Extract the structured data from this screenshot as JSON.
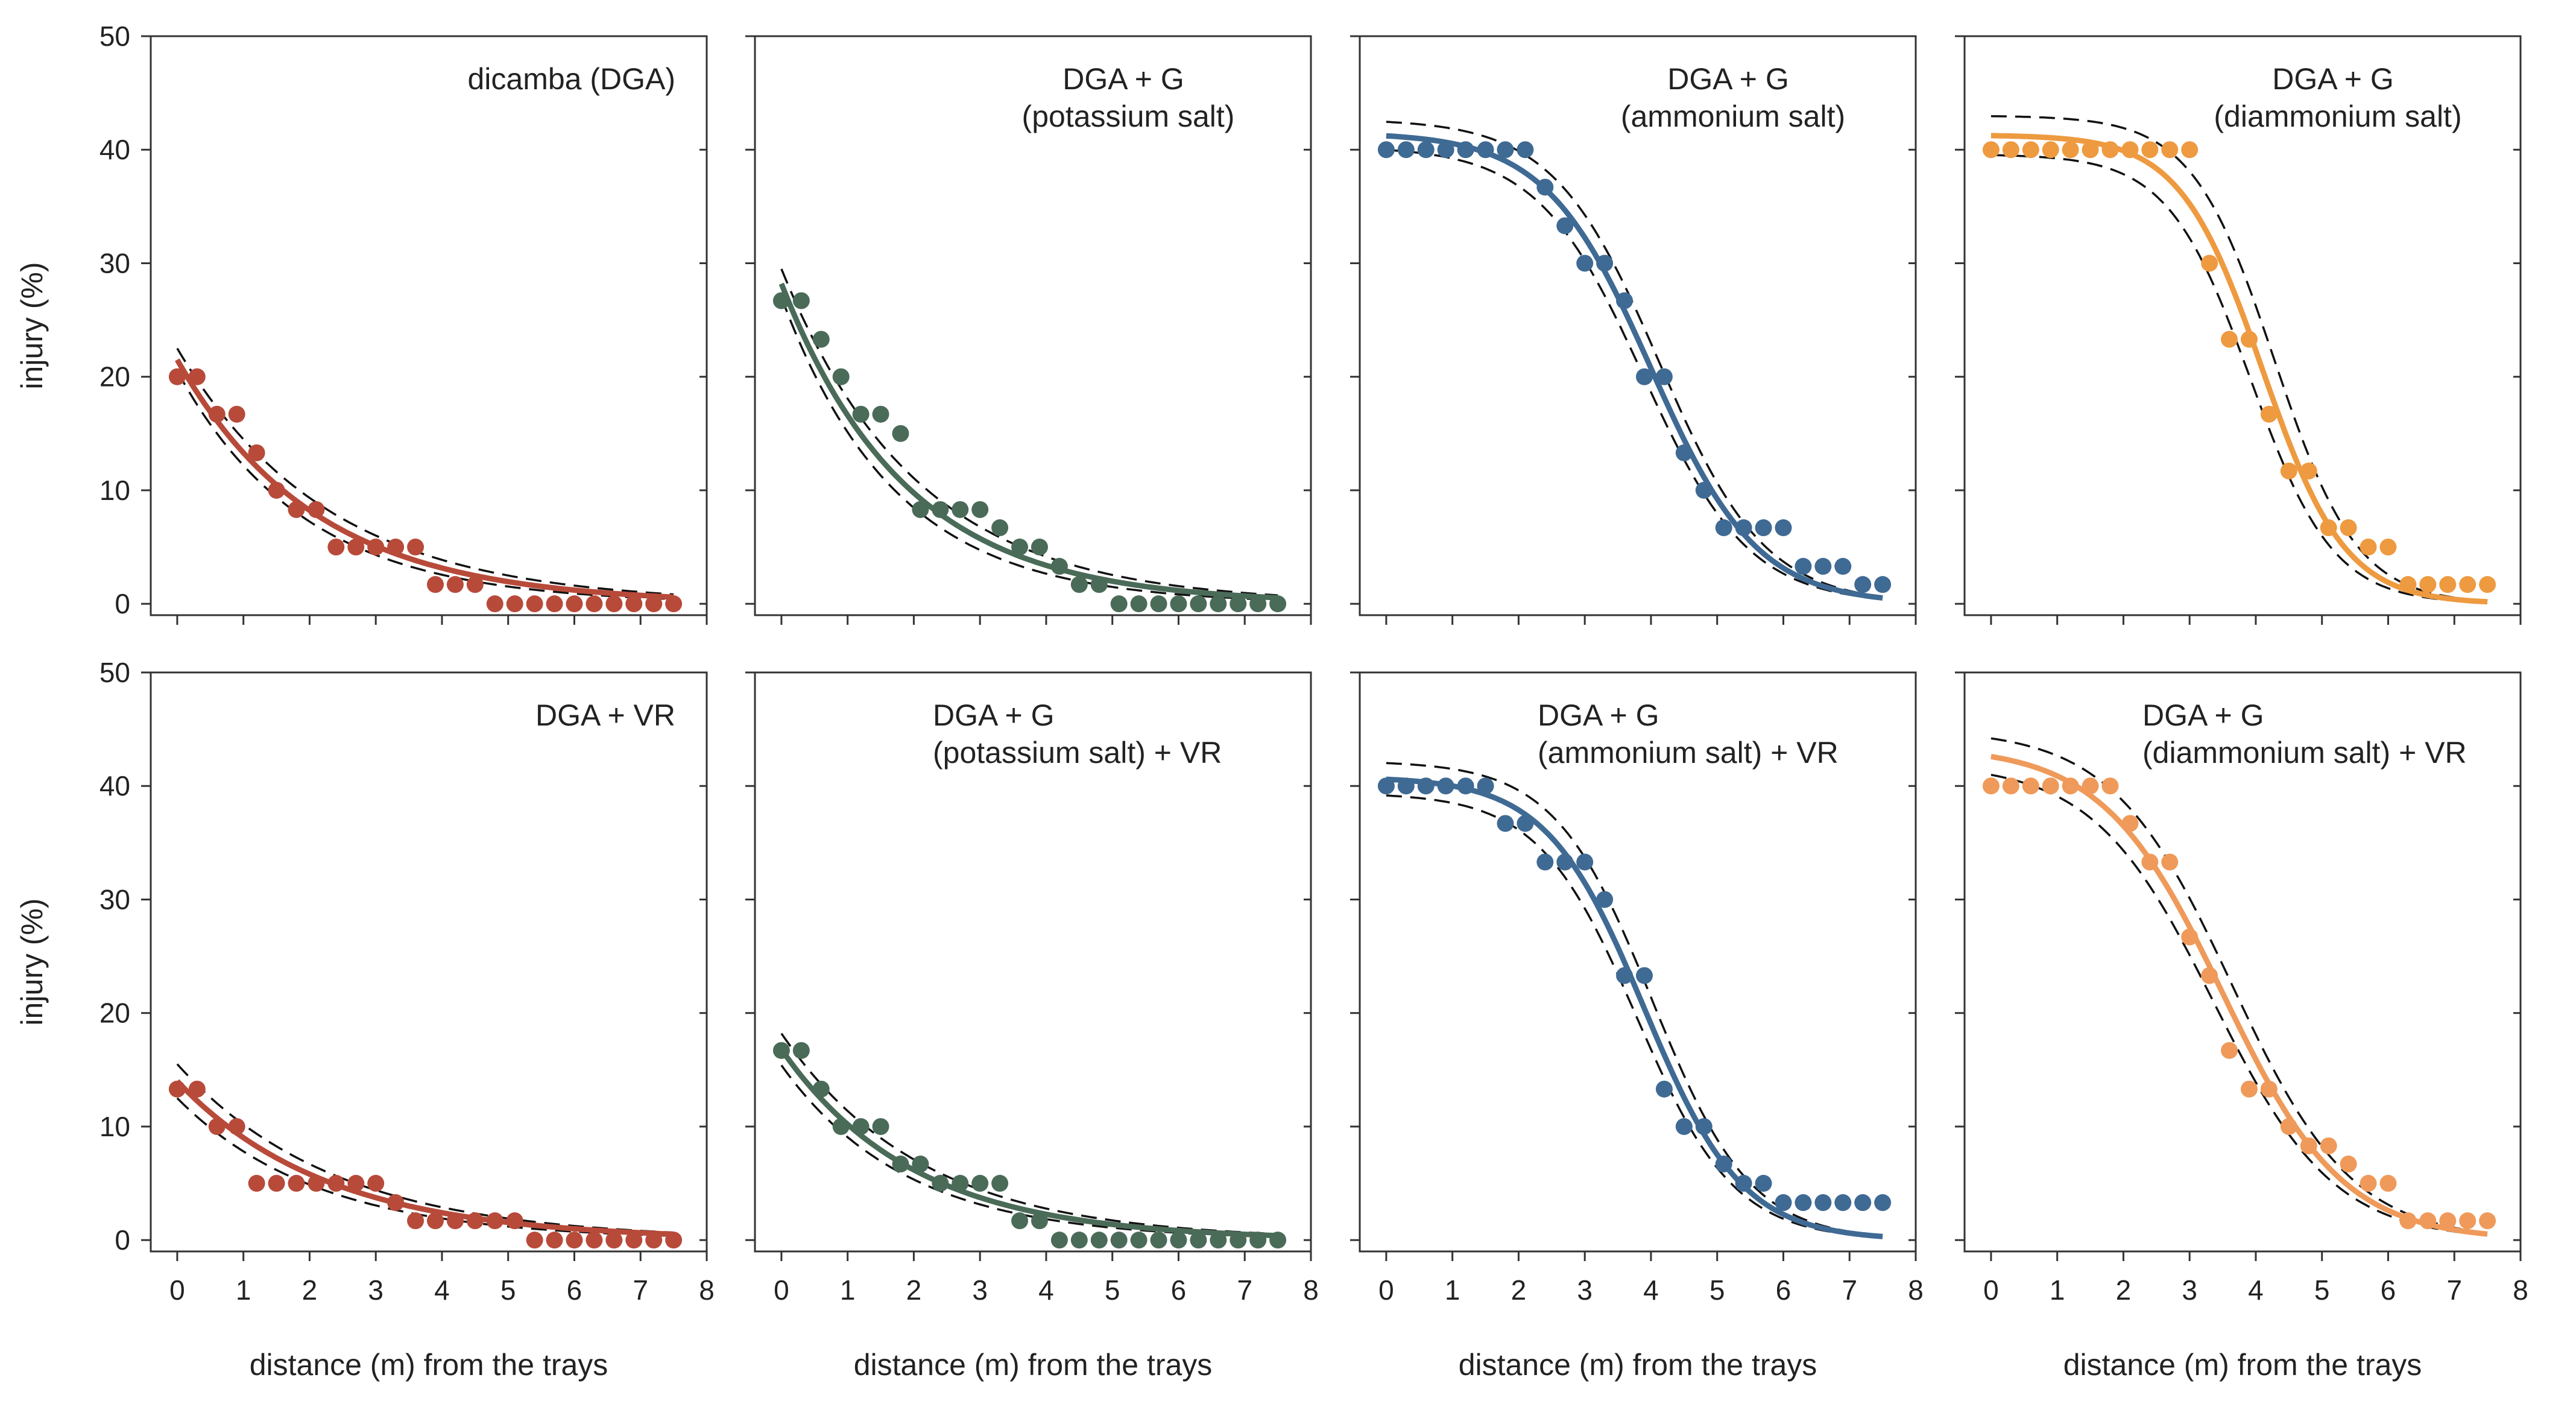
{
  "figure": {
    "xlabel": "distance (m) from the trays",
    "ylabel": "injury (%)",
    "colors": {
      "red": "#b84a3a",
      "green": "#4a6b58",
      "blue": "#3f6a94",
      "orange": "#ee9a40",
      "orange_light": "#ef9a5a",
      "ci_line": "#111111",
      "axis": "#333333"
    }
  },
  "chart_data": [
    {
      "type": "scatter",
      "title": [
        "dicamba (DGA)"
      ],
      "title_align": "right",
      "color": "red",
      "xlabel": "distance (m) from the trays",
      "ylabel": "injury (%)",
      "xlim": [
        -0.4,
        8
      ],
      "ylim": [
        -1,
        50
      ],
      "xticks": [
        "0",
        "1",
        "2",
        "3",
        "4",
        "5",
        "6",
        "7",
        "8"
      ],
      "yticks": [
        "0",
        "10",
        "20",
        "30",
        "40",
        "50"
      ],
      "show_xticklabels": false,
      "show_yticklabels": true,
      "show_ylabel": true,
      "show_xlabel": false,
      "points": {
        "x": [
          0,
          0.3,
          0.6,
          0.9,
          1.2,
          1.5,
          1.8,
          2.1,
          2.4,
          2.7,
          3.0,
          3.3,
          3.6,
          3.9,
          4.2,
          4.5,
          4.8,
          5.1,
          5.4,
          5.7,
          6.0,
          6.3,
          6.6,
          6.9,
          7.2,
          7.5
        ],
        "y": [
          20,
          20,
          16.7,
          16.7,
          13.3,
          10,
          8.3,
          8.3,
          5,
          5,
          5,
          5,
          5,
          1.7,
          1.7,
          1.7,
          0,
          0,
          0,
          0,
          0,
          0,
          0,
          0,
          0,
          0
        ]
      },
      "fit": {
        "model": "exponential",
        "a": 21.5,
        "b": 0.48
      },
      "ci": {
        "upper": {
          "a": 22.5,
          "b": 0.44
        },
        "lower": {
          "a": 20.5,
          "b": 0.52
        }
      }
    },
    {
      "type": "scatter",
      "title": [
        "DGA + G",
        "(potassium salt)"
      ],
      "title_align": "center",
      "color": "green",
      "xlabel": "distance (m) from the trays",
      "ylabel": "injury (%)",
      "xlim": [
        -0.4,
        8
      ],
      "ylim": [
        -1,
        50
      ],
      "xticks": [
        "0",
        "1",
        "2",
        "3",
        "4",
        "5",
        "6",
        "7",
        "8"
      ],
      "yticks": [
        "0",
        "10",
        "20",
        "30",
        "40",
        "50"
      ],
      "show_xticklabels": false,
      "show_yticklabels": false,
      "show_ylabel": false,
      "show_xlabel": false,
      "points": {
        "x": [
          0,
          0.3,
          0.6,
          0.9,
          1.2,
          1.5,
          1.8,
          2.1,
          2.4,
          2.7,
          3.0,
          3.3,
          3.6,
          3.9,
          4.2,
          4.5,
          4.8,
          5.1,
          5.4,
          5.7,
          6.0,
          6.3,
          6.6,
          6.9,
          7.2,
          7.5
        ],
        "y": [
          26.7,
          26.7,
          23.3,
          20,
          16.7,
          16.7,
          15,
          8.3,
          8.3,
          8.3,
          8.3,
          6.7,
          5,
          5,
          3.3,
          1.7,
          1.7,
          0,
          0,
          0,
          0,
          0,
          0,
          0,
          0,
          0
        ]
      },
      "fit": {
        "model": "exponential",
        "a": 28.2,
        "b": 0.53
      },
      "ci": {
        "upper": {
          "a": 29.5,
          "b": 0.49
        },
        "lower": {
          "a": 27.0,
          "b": 0.58
        }
      }
    },
    {
      "type": "scatter",
      "title": [
        "DGA + G",
        "(ammonium salt)"
      ],
      "title_align": "center",
      "color": "blue",
      "xlabel": "distance (m) from the trays",
      "ylabel": "injury (%)",
      "xlim": [
        -0.4,
        8
      ],
      "ylim": [
        -1,
        50
      ],
      "xticks": [
        "0",
        "1",
        "2",
        "3",
        "4",
        "5",
        "6",
        "7",
        "8"
      ],
      "yticks": [
        "0",
        "10",
        "20",
        "30",
        "40",
        "50"
      ],
      "show_xticklabels": false,
      "show_yticklabels": false,
      "show_ylabel": false,
      "show_xlabel": false,
      "points": {
        "x": [
          0,
          0.3,
          0.6,
          0.9,
          1.2,
          1.5,
          1.8,
          2.1,
          2.4,
          2.7,
          3.0,
          3.3,
          3.6,
          3.9,
          4.2,
          4.5,
          4.8,
          5.1,
          5.4,
          5.7,
          6.0,
          6.3,
          6.6,
          6.9,
          7.2,
          7.5
        ],
        "y": [
          40,
          40,
          40,
          40,
          40,
          40,
          40,
          40,
          36.7,
          33.3,
          30,
          30,
          26.7,
          20,
          20,
          13.3,
          10,
          6.7,
          6.7,
          6.7,
          6.7,
          3.3,
          3.3,
          3.3,
          1.7,
          1.7
        ]
      },
      "fit": {
        "model": "logistic",
        "top": 41.5,
        "x0": 4.0,
        "k": 1.25
      },
      "ci": {
        "upper": {
          "top": 42.7,
          "x0": 4.12,
          "k": 1.25
        },
        "lower": {
          "top": 40.3,
          "x0": 3.88,
          "k": 1.25
        }
      }
    },
    {
      "type": "scatter",
      "title": [
        "DGA + G",
        "(diammonium salt)"
      ],
      "title_align": "center",
      "color": "orange",
      "xlabel": "distance (m) from the trays",
      "ylabel": "injury (%)",
      "xlim": [
        -0.4,
        8
      ],
      "ylim": [
        -1,
        50
      ],
      "xticks": [
        "0",
        "1",
        "2",
        "3",
        "4",
        "5",
        "6",
        "7",
        "8"
      ],
      "yticks": [
        "0",
        "10",
        "20",
        "30",
        "40",
        "50"
      ],
      "show_xticklabels": false,
      "show_yticklabels": false,
      "show_ylabel": false,
      "show_xlabel": false,
      "points": {
        "x": [
          0,
          0.3,
          0.6,
          0.9,
          1.2,
          1.5,
          1.8,
          2.1,
          2.4,
          2.7,
          3.0,
          3.3,
          3.6,
          3.9,
          4.2,
          4.5,
          4.8,
          5.1,
          5.4,
          5.7,
          6.0,
          6.3,
          6.6,
          6.9,
          7.2,
          7.5
        ],
        "y": [
          40,
          40,
          40,
          40,
          40,
          40,
          40,
          40,
          40,
          40,
          40,
          30,
          23.3,
          23.3,
          16.7,
          11.7,
          11.7,
          6.7,
          6.7,
          5,
          5,
          1.7,
          1.7,
          1.7,
          1.7,
          1.7
        ]
      },
      "fit": {
        "model": "logistic",
        "top": 41.3,
        "x0": 4.1,
        "k": 1.6
      },
      "ci": {
        "upper": {
          "top": 43.0,
          "x0": 4.28,
          "k": 1.6
        },
        "lower": {
          "top": 39.6,
          "x0": 3.92,
          "k": 1.6
        }
      }
    },
    {
      "type": "scatter",
      "title": [
        "DGA + VR"
      ],
      "title_align": "right",
      "color": "red",
      "xlabel": "distance (m) from the trays",
      "ylabel": "injury (%)",
      "xlim": [
        -0.4,
        8
      ],
      "ylim": [
        -1,
        50
      ],
      "xticks": [
        "0",
        "1",
        "2",
        "3",
        "4",
        "5",
        "6",
        "7",
        "8"
      ],
      "yticks": [
        "0",
        "10",
        "20",
        "30",
        "40",
        "50"
      ],
      "show_xticklabels": true,
      "show_yticklabels": true,
      "show_ylabel": true,
      "show_xlabel": true,
      "points": {
        "x": [
          0,
          0.3,
          0.6,
          0.9,
          1.2,
          1.5,
          1.8,
          2.1,
          2.4,
          2.7,
          3.0,
          3.3,
          3.6,
          3.9,
          4.2,
          4.5,
          4.8,
          5.1,
          5.4,
          5.7,
          6.0,
          6.3,
          6.6,
          6.9,
          7.2,
          7.5
        ],
        "y": [
          13.3,
          13.3,
          10,
          10,
          5,
          5,
          5,
          5,
          5,
          5,
          5,
          3.3,
          1.7,
          1.7,
          1.7,
          1.7,
          1.7,
          1.7,
          0,
          0,
          0,
          0,
          0,
          0,
          0,
          0
        ]
      },
      "fit": {
        "model": "exponential",
        "a": 14.0,
        "b": 0.44
      },
      "ci": {
        "upper": {
          "a": 15.5,
          "b": 0.42
        },
        "lower": {
          "a": 12.5,
          "b": 0.47
        }
      }
    },
    {
      "type": "scatter",
      "title": [
        "DGA + G",
        "(potassium salt) + VR"
      ],
      "title_align": "left",
      "color": "green",
      "xlabel": "distance (m) from the trays",
      "ylabel": "injury (%)",
      "xlim": [
        -0.4,
        8
      ],
      "ylim": [
        -1,
        50
      ],
      "xticks": [
        "0",
        "1",
        "2",
        "3",
        "4",
        "5",
        "6",
        "7",
        "8"
      ],
      "yticks": [
        "0",
        "10",
        "20",
        "30",
        "40",
        "50"
      ],
      "show_xticklabels": true,
      "show_yticklabels": false,
      "show_ylabel": false,
      "show_xlabel": true,
      "points": {
        "x": [
          0,
          0.3,
          0.6,
          0.9,
          1.2,
          1.5,
          1.8,
          2.1,
          2.4,
          2.7,
          3.0,
          3.3,
          3.6,
          3.9,
          4.2,
          4.5,
          4.8,
          5.1,
          5.4,
          5.7,
          6.0,
          6.3,
          6.6,
          6.9,
          7.2,
          7.5
        ],
        "y": [
          16.7,
          16.7,
          13.3,
          10,
          10,
          10,
          6.7,
          6.7,
          5,
          5,
          5,
          5,
          1.7,
          1.7,
          0,
          0,
          0,
          0,
          0,
          0,
          0,
          0,
          0,
          0,
          0,
          0
        ]
      },
      "fit": {
        "model": "exponential",
        "a": 16.8,
        "b": 0.5
      },
      "ci": {
        "upper": {
          "a": 18.2,
          "b": 0.47
        },
        "lower": {
          "a": 15.4,
          "b": 0.53
        }
      }
    },
    {
      "type": "scatter",
      "title": [
        "DGA + G",
        "(ammonium salt) + VR"
      ],
      "title_align": "left",
      "color": "blue",
      "xlabel": "distance (m) from the trays",
      "ylabel": "injury (%)",
      "xlim": [
        -0.4,
        8
      ],
      "ylim": [
        -1,
        50
      ],
      "xticks": [
        "0",
        "1",
        "2",
        "3",
        "4",
        "5",
        "6",
        "7",
        "8"
      ],
      "yticks": [
        "0",
        "10",
        "20",
        "30",
        "40",
        "50"
      ],
      "show_xticklabels": true,
      "show_yticklabels": false,
      "show_ylabel": false,
      "show_xlabel": true,
      "points": {
        "x": [
          0,
          0.3,
          0.6,
          0.9,
          1.2,
          1.5,
          1.8,
          2.1,
          2.4,
          2.7,
          3.0,
          3.3,
          3.6,
          3.9,
          4.2,
          4.5,
          4.8,
          5.1,
          5.4,
          5.7,
          6.0,
          6.3,
          6.6,
          6.9,
          7.2,
          7.5
        ],
        "y": [
          40,
          40,
          40,
          40,
          40,
          40,
          36.7,
          36.7,
          33.3,
          33.3,
          33.3,
          30,
          23.3,
          23.3,
          13.3,
          10,
          10,
          6.7,
          5,
          5,
          3.3,
          3.3,
          3.3,
          3.3,
          3.3,
          3.3
        ]
      },
      "fit": {
        "model": "logistic",
        "top": 40.8,
        "x0": 3.9,
        "k": 1.35
      },
      "ci": {
        "upper": {
          "top": 42.2,
          "x0": 4.02,
          "k": 1.35
        },
        "lower": {
          "top": 39.4,
          "x0": 3.78,
          "k": 1.35
        }
      }
    },
    {
      "type": "scatter",
      "title": [
        "DGA + G",
        "(diammonium salt) + VR"
      ],
      "title_align": "left",
      "color": "orange_light",
      "xlabel": "distance (m) from the trays",
      "ylabel": "injury (%)",
      "xlim": [
        -0.4,
        8
      ],
      "ylim": [
        -1,
        50
      ],
      "xticks": [
        "0",
        "1",
        "2",
        "3",
        "4",
        "5",
        "6",
        "7",
        "8"
      ],
      "yticks": [
        "0",
        "10",
        "20",
        "30",
        "40",
        "50"
      ],
      "show_xticklabels": true,
      "show_yticklabels": false,
      "show_ylabel": false,
      "show_xlabel": true,
      "points": {
        "x": [
          0,
          0.3,
          0.6,
          0.9,
          1.2,
          1.5,
          1.8,
          2.1,
          2.4,
          2.7,
          3.0,
          3.3,
          3.6,
          3.9,
          4.2,
          4.5,
          4.8,
          5.1,
          5.4,
          5.7,
          6.0,
          6.3,
          6.6,
          6.9,
          7.2,
          7.5
        ],
        "y": [
          40,
          40,
          40,
          40,
          40,
          40,
          40,
          36.7,
          33.3,
          33.3,
          26.7,
          23.3,
          16.7,
          13.3,
          13.3,
          10,
          8.3,
          8.3,
          6.7,
          5,
          5,
          1.7,
          1.7,
          1.7,
          1.7,
          1.7
        ]
      },
      "fit": {
        "model": "logistic",
        "top": 43.5,
        "x0": 3.5,
        "k": 1.1
      },
      "ci": {
        "upper": {
          "top": 45.0,
          "x0": 3.64,
          "k": 1.1
        },
        "lower": {
          "top": 42.0,
          "x0": 3.36,
          "k": 1.1
        }
      }
    }
  ]
}
